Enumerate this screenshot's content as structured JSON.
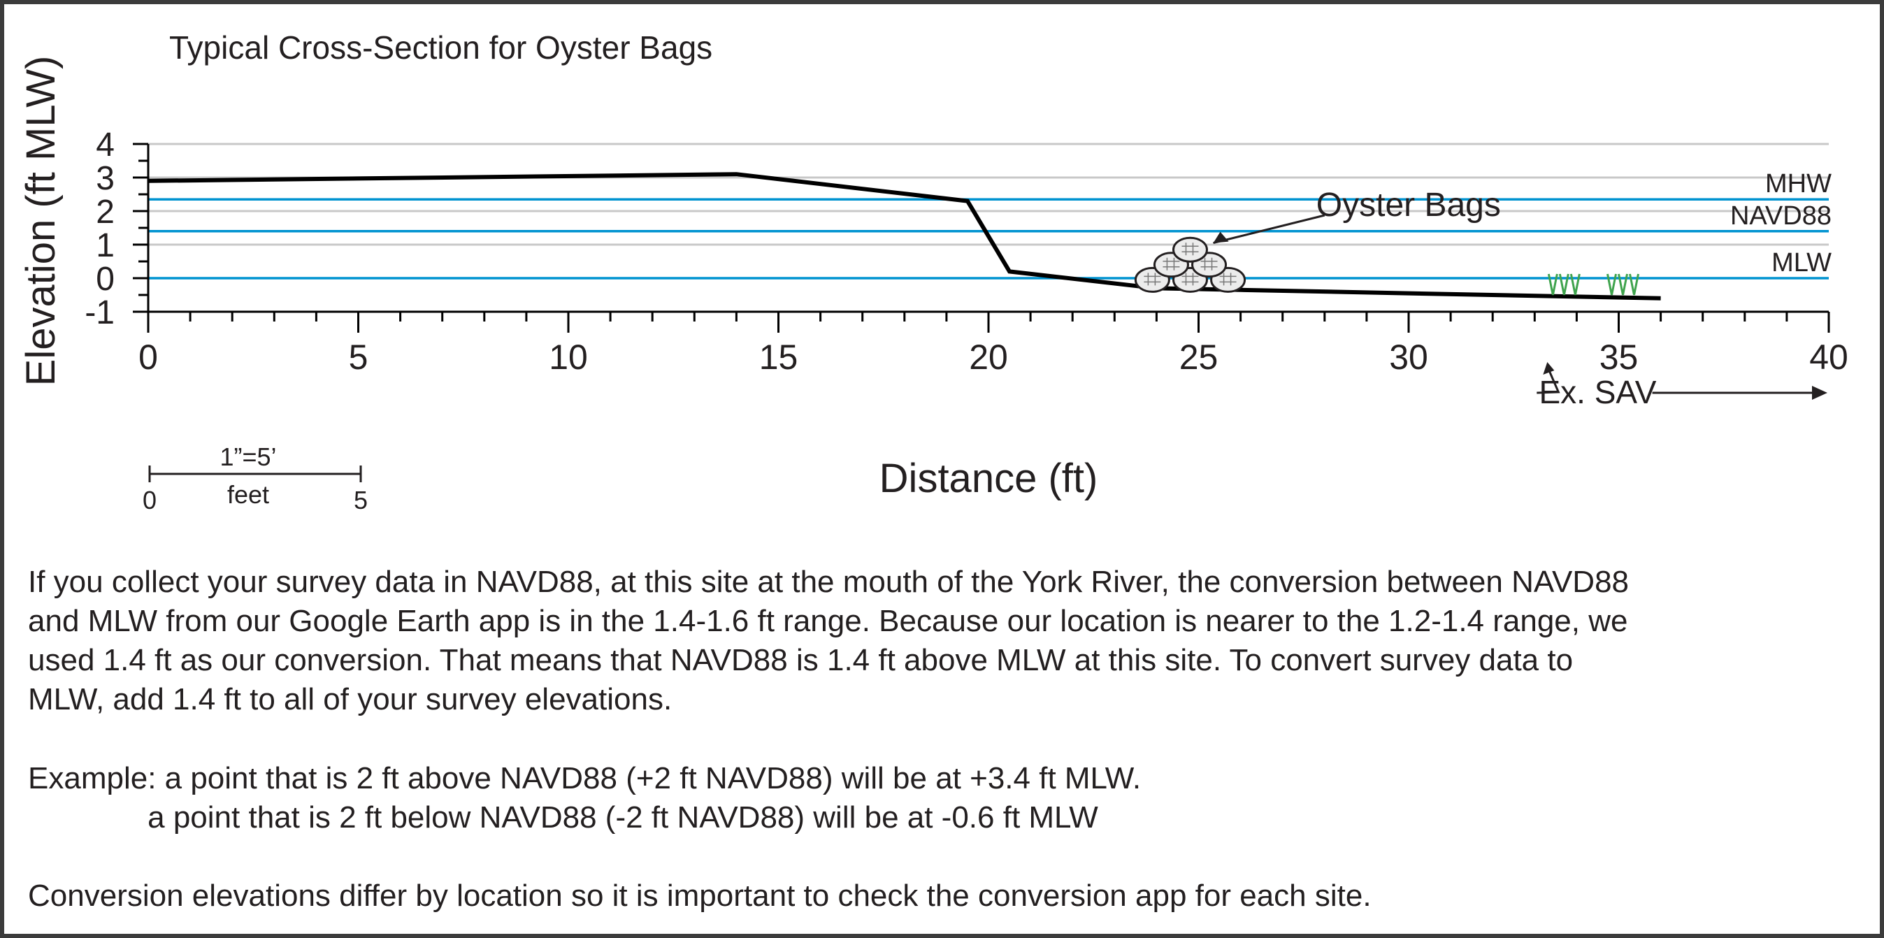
{
  "title": "Typical Cross-Section for Oyster Bags",
  "chart_data": {
    "type": "line",
    "xlabel": "Distance (ft)",
    "ylabel": "Elevation (ft MLW)",
    "xlim": [
      0,
      40
    ],
    "ylim": [
      -1,
      4
    ],
    "x_ticks": [
      "0",
      "5",
      "10",
      "15",
      "20",
      "25",
      "30",
      "35",
      "40"
    ],
    "y_ticks": [
      "-1",
      "0",
      "1",
      "2",
      "3",
      "4"
    ],
    "grid": true,
    "profile": {
      "x": [
        0,
        14,
        19.5,
        20.5,
        24,
        26,
        36
      ],
      "y": [
        2.9,
        3.1,
        2.3,
        0.2,
        -0.3,
        -0.35,
        -0.6
      ]
    },
    "reference_lines": [
      {
        "name": "MHW",
        "y": 2.35,
        "color": "#0093d0"
      },
      {
        "name": "NAVD88",
        "y": 1.4,
        "color": "#0093d0"
      },
      {
        "name": "MLW",
        "y": 0,
        "color": "#0093d0"
      }
    ],
    "oyster_bags_label": "Oyster Bags",
    "sav_label": "Ex. SAV",
    "sav_color": "#3fa34d"
  },
  "scale_bar": {
    "ratio": "1”=5’",
    "unit": "feet",
    "start": "0",
    "end": "5"
  },
  "text": {
    "paragraph1": [
      "If you collect your survey data in NAVD88, at this site at the mouth of the York River, the conversion between NAVD88",
      "and MLW from our Google Earth app is in the 1.4-1.6 ft range. Because our location is nearer to the 1.2-1.4 range, we",
      "used 1.4 ft as our conversion. That means that NAVD88 is 1.4 ft above MLW at this site. To convert survey data to",
      "MLW, add 1.4 ft to all of your survey elevations."
    ],
    "example": [
      "Example: a point that is 2 ft above NAVD88 (+2 ft NAVD88) will be at +3.4 ft MLW.",
      "              a point that is 2 ft below NAVD88 (-2 ft NAVD88) will be at -0.6 ft MLW"
    ],
    "closing": "Conversion elevations differ by location so it is important to check the conversion app for each site."
  }
}
